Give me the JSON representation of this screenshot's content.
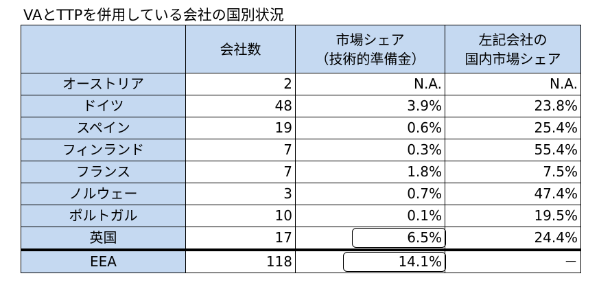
{
  "title": "VAとTTPを併用している会社の国別状況",
  "headers": {
    "company_count": "会社数",
    "market_share_line1": "市場シェア",
    "market_share_line2": "（技術的準備金）",
    "domestic_share_line1": "左記会社の",
    "domestic_share_line2": "国内市場シェア"
  },
  "rows": [
    {
      "country": "オーストリア",
      "count": "2",
      "share": "N.A.",
      "domestic": "N.A."
    },
    {
      "country": "ドイツ",
      "count": "48",
      "share": "3.9%",
      "domestic": "23.8%"
    },
    {
      "country": "スペイン",
      "count": "19",
      "share": "0.6%",
      "domestic": "25.4%"
    },
    {
      "country": "フィンランド",
      "count": "7",
      "share": "0.3%",
      "domestic": "55.4%"
    },
    {
      "country": "フランス",
      "count": "7",
      "share": "1.8%",
      "domestic": "7.5%"
    },
    {
      "country": "ノルウェー",
      "count": "3",
      "share": "0.7%",
      "domestic": "47.4%"
    },
    {
      "country": "ポルトガル",
      "count": "10",
      "share": "0.1%",
      "domestic": "19.5%"
    },
    {
      "country": "英国",
      "count": "17",
      "share": "6.5%",
      "domestic": "24.4%"
    }
  ],
  "total": {
    "country": "EEA",
    "count": "118",
    "share": "14.1%",
    "domestic": "－"
  }
}
